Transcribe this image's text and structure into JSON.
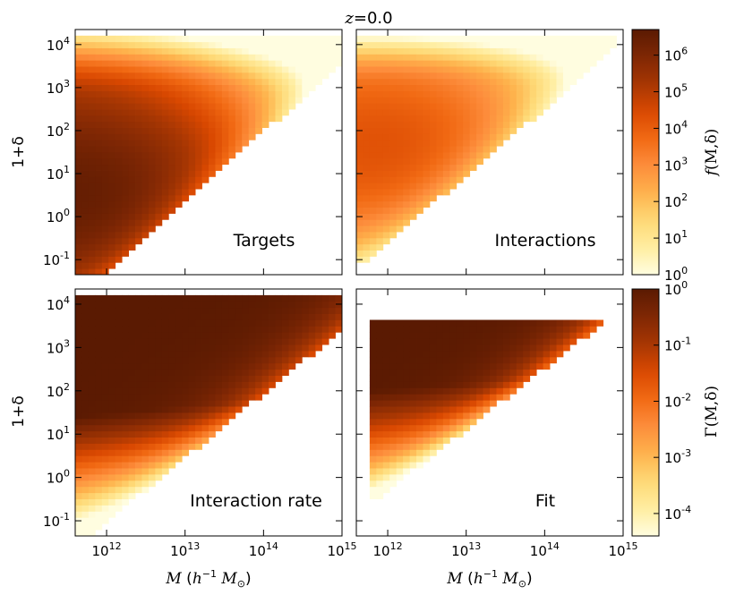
{
  "figure": {
    "title_var": "z",
    "title_eq": "=0.0",
    "xlabel": {
      "sym": "M",
      "unit_open": " (",
      "h": "h",
      "exp": "−1",
      "m": " M",
      "sub": "⊙",
      "close": ")"
    },
    "ylabel_top": "1+δ",
    "ylabel_bottom": "1+δ"
  },
  "colorbar_top": {
    "label_pre": "f",
    "label_args": "(M,δ)",
    "ticks": [
      {
        "v": 0,
        "base": "10",
        "exp": "0"
      },
      {
        "v": 1,
        "base": "10",
        "exp": "1"
      },
      {
        "v": 2,
        "base": "10",
        "exp": "2"
      },
      {
        "v": 3,
        "base": "10",
        "exp": "3"
      },
      {
        "v": 4,
        "base": "10",
        "exp": "4"
      },
      {
        "v": 5,
        "base": "10",
        "exp": "5"
      },
      {
        "v": 6,
        "base": "10",
        "exp": "6"
      }
    ],
    "range_log": [
      0,
      6.7
    ]
  },
  "colorbar_bottom": {
    "label_pre": "Γ",
    "label_args": "(M,δ)",
    "ticks": [
      {
        "v": -4,
        "base": "10",
        "exp": "-4"
      },
      {
        "v": -3,
        "base": "10",
        "exp": "-3"
      },
      {
        "v": -2,
        "base": "10",
        "exp": "-2"
      },
      {
        "v": -1,
        "base": "10",
        "exp": "-1"
      },
      {
        "v": 0,
        "base": "10",
        "exp": "0"
      }
    ],
    "range_log": [
      -4.4,
      0
    ]
  },
  "axes_ticks": {
    "x": [
      {
        "v": 12,
        "base": "10",
        "exp": "12"
      },
      {
        "v": 13,
        "base": "10",
        "exp": "13"
      },
      {
        "v": 14,
        "base": "10",
        "exp": "14"
      },
      {
        "v": 15,
        "base": "10",
        "exp": "15"
      }
    ],
    "y": [
      {
        "v": -1,
        "base": "10",
        "exp": "-1"
      },
      {
        "v": 0,
        "base": "10",
        "exp": "0"
      },
      {
        "v": 1,
        "base": "10",
        "exp": "1"
      },
      {
        "v": 2,
        "base": "10",
        "exp": "2"
      },
      {
        "v": 3,
        "base": "10",
        "exp": "3"
      },
      {
        "v": 4,
        "base": "10",
        "exp": "4"
      }
    ]
  },
  "colormap": [
    "#fffde0",
    "#ffeda0",
    "#fed976",
    "#feb24c",
    "#fd8d3c",
    "#f16913",
    "#d94801",
    "#a63603",
    "#7f2704",
    "#5a1a02"
  ],
  "chart_data": [
    {
      "type": "heatmap",
      "panel": "Targets",
      "label": "Targets",
      "x_log_range": [
        11.6,
        15.0
      ],
      "y_log_range": [
        -1.35,
        4.35
      ],
      "description_values": "log10 f: peak ~6.5 near log M 11.7, log(1+δ) 0.4; support to the upper-left of a diagonal from (12.0,-1.3) to (15.0,3.6)"
    },
    {
      "type": "heatmap",
      "panel": "Interactions",
      "label": "Interactions",
      "x_log_range": [
        11.6,
        15.0
      ],
      "y_log_range": [
        -1.35,
        4.35
      ],
      "description_values": "log10 f: peak ~4.3 near log M 12.0, log(1+δ) 1.5; support to the upper-left of a diagonal from (11.8,-0.9) to (14.9,3.9)"
    },
    {
      "type": "heatmap",
      "panel": "Interaction rate",
      "label": "Interaction rate",
      "x_log_range": [
        11.6,
        15.0
      ],
      "y_log_range": [
        -1.35,
        4.35
      ],
      "description_values": "log10 Γ: ~0 (dark) at high density, falling to ~-4 at low density; support to the upper-left of a diagonal from (11.8,-1.3) to (15.0,3.4)"
    },
    {
      "type": "heatmap",
      "panel": "Fit",
      "label": "Fit",
      "x_log_range": [
        11.6,
        15.0
      ],
      "y_log_range": [
        -1.35,
        4.35
      ],
      "description_values": "log10 Γ model: ~0 at high density, decreasing to ~-4 toward low density; support from log(1+δ) -0.65 to 3.65 and log M 11.75 to 14.9, bounded by a diagonal"
    }
  ]
}
